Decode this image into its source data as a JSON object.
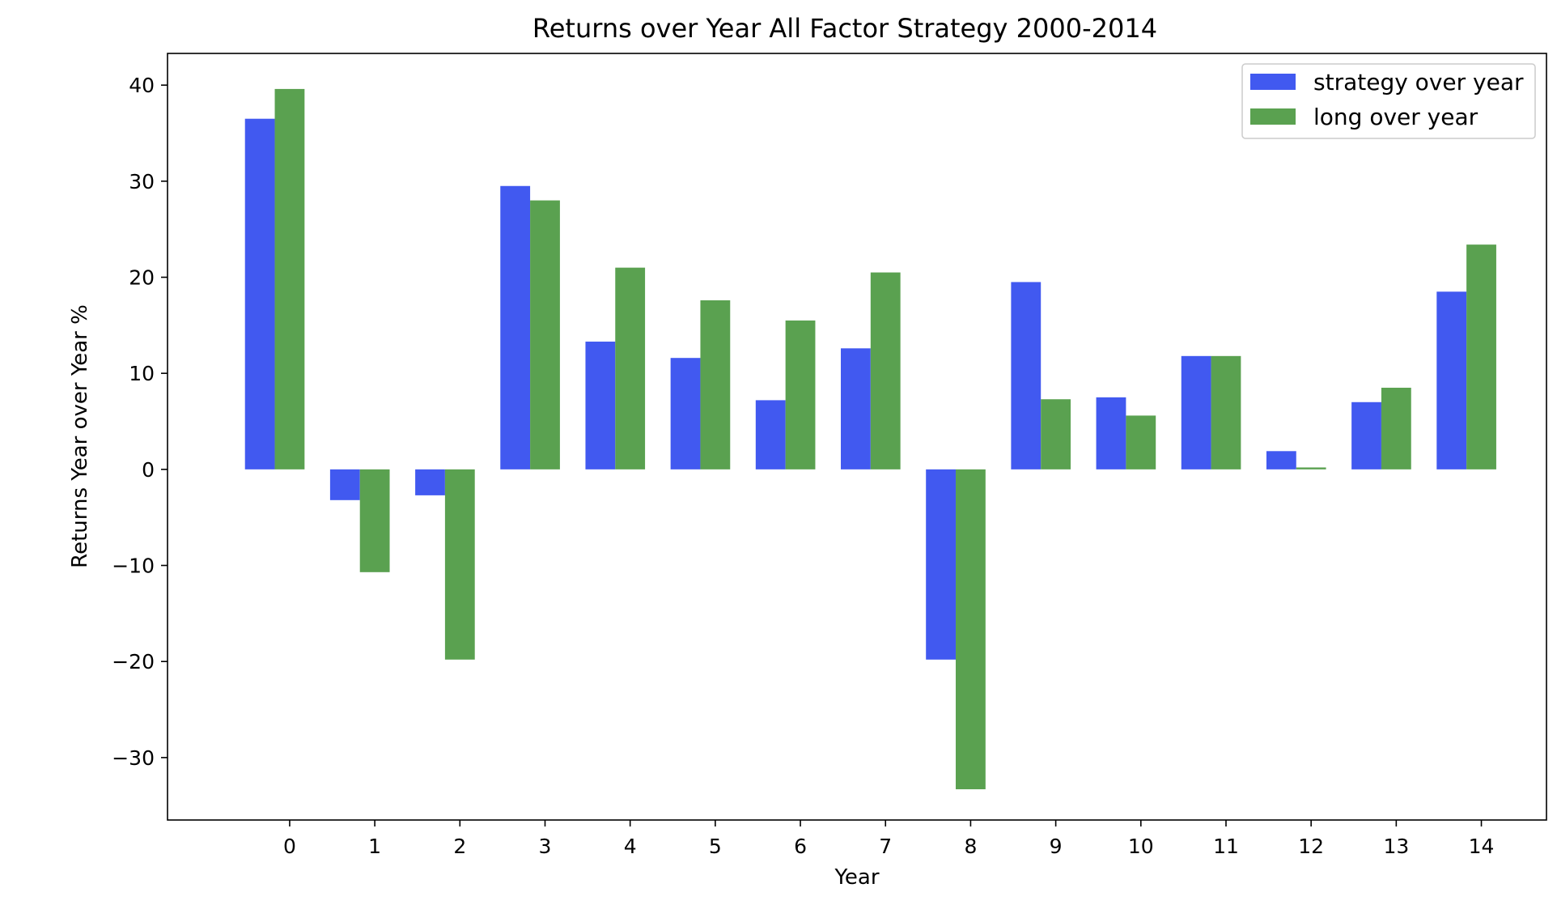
{
  "chart_data": {
    "type": "bar",
    "title": "Returns over Year  All Factor Strategy 2000-2014",
    "xlabel": "Year",
    "ylabel": "Returns Year over Year %",
    "categories": [
      "0",
      "1",
      "2",
      "3",
      "4",
      "5",
      "6",
      "7",
      "8",
      "9",
      "10",
      "11",
      "12",
      "13",
      "14"
    ],
    "series": [
      {
        "name": "strategy over year",
        "color": "#4159f0",
        "values": [
          36.5,
          -3.2,
          -2.7,
          29.5,
          13.3,
          11.6,
          7.2,
          12.6,
          -19.8,
          19.5,
          7.5,
          11.8,
          1.9,
          7.0,
          18.5
        ]
      },
      {
        "name": "long over year",
        "color": "#5aa150",
        "values": [
          39.6,
          -10.7,
          -19.8,
          28.0,
          21.0,
          17.6,
          15.5,
          20.5,
          -33.3,
          7.3,
          5.6,
          11.8,
          0.2,
          8.5,
          23.4
        ]
      }
    ],
    "ylim": [
      -36.5,
      43.3
    ],
    "yticks": [
      40,
      30,
      20,
      10,
      0,
      -10,
      -20,
      -30
    ],
    "ytick_labels": [
      "40",
      "30",
      "20",
      "10",
      "0",
      "−10",
      "−20",
      "−30"
    ],
    "xlim": [
      -1.26,
      14.94
    ],
    "grid": false,
    "legend_position": "upper right"
  }
}
